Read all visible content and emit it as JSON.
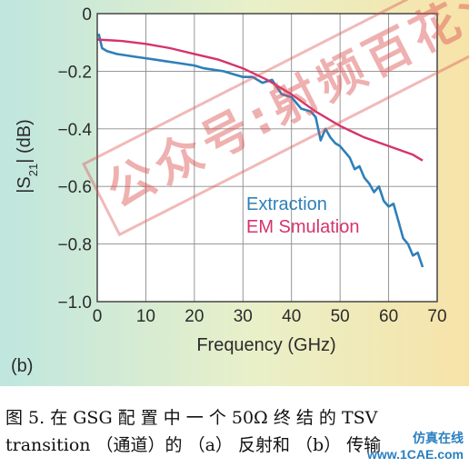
{
  "panel_label": "(b)",
  "caption": {
    "line1": "图 5. 在 GSG 配 置 中 一 个 50Ω 终 结 的 TSV",
    "line2": "transition （通道）的 （a） 反射和 （b） 传输"
  },
  "watermark": {
    "stamp_text": "公众号:射频百花潭",
    "site_cn": "仿真在线",
    "site_en": "www.1CAE.com"
  },
  "colors": {
    "extraction": "#2f7fb8",
    "em_simulation": "#d6336c",
    "bg_left": "#bfe6df",
    "bg_right": "#f7e3a8",
    "plot_bg": "#ffffff"
  },
  "chart_data": {
    "type": "line",
    "xlabel": "Frequency (GHz)",
    "ylabel_parts": [
      "|",
      "S",
      "21",
      "| (dB)"
    ],
    "xlim": [
      0,
      70
    ],
    "ylim": [
      -1.0,
      0
    ],
    "xticks": [
      0,
      10,
      20,
      30,
      40,
      50,
      60,
      70
    ],
    "yticks": [
      0,
      -0.2,
      -0.4,
      -0.6,
      -0.8,
      -1.0
    ],
    "xtick_labels": [
      "0",
      "10",
      "20",
      "30",
      "40",
      "50",
      "60",
      "70"
    ],
    "ytick_labels": [
      "0",
      "−0.2",
      "−0.4",
      "−0.6",
      "−0.8",
      "−1.0"
    ],
    "grid": true,
    "legend_placement": "lower-right inside",
    "series": [
      {
        "name": "Extraction",
        "x": [
          0.3,
          1,
          2,
          4,
          6,
          8,
          10,
          12,
          14,
          16,
          18,
          20,
          22,
          24,
          26,
          28,
          30,
          32,
          34,
          36,
          38,
          40,
          42,
          44,
          45,
          46,
          47,
          48,
          49,
          50,
          51,
          52,
          53,
          54,
          55,
          56,
          57,
          58,
          59,
          60,
          61,
          62,
          63,
          64,
          65,
          66,
          67
        ],
        "y": [
          -0.07,
          -0.12,
          -0.13,
          -0.14,
          -0.145,
          -0.15,
          -0.155,
          -0.16,
          -0.165,
          -0.17,
          -0.175,
          -0.18,
          -0.19,
          -0.195,
          -0.2,
          -0.21,
          -0.22,
          -0.22,
          -0.24,
          -0.23,
          -0.28,
          -0.29,
          -0.33,
          -0.34,
          -0.36,
          -0.44,
          -0.4,
          -0.43,
          -0.45,
          -0.46,
          -0.48,
          -0.5,
          -0.54,
          -0.53,
          -0.57,
          -0.59,
          -0.62,
          -0.6,
          -0.65,
          -0.67,
          -0.66,
          -0.72,
          -0.78,
          -0.8,
          -0.84,
          -0.83,
          -0.88
        ]
      },
      {
        "name": "EM Smulation",
        "x": [
          0,
          5,
          10,
          15,
          20,
          25,
          30,
          35,
          40,
          45,
          50,
          55,
          60,
          65,
          67
        ],
        "y": [
          -0.09,
          -0.095,
          -0.105,
          -0.12,
          -0.14,
          -0.16,
          -0.19,
          -0.23,
          -0.28,
          -0.34,
          -0.39,
          -0.43,
          -0.46,
          -0.49,
          -0.51
        ]
      }
    ]
  }
}
